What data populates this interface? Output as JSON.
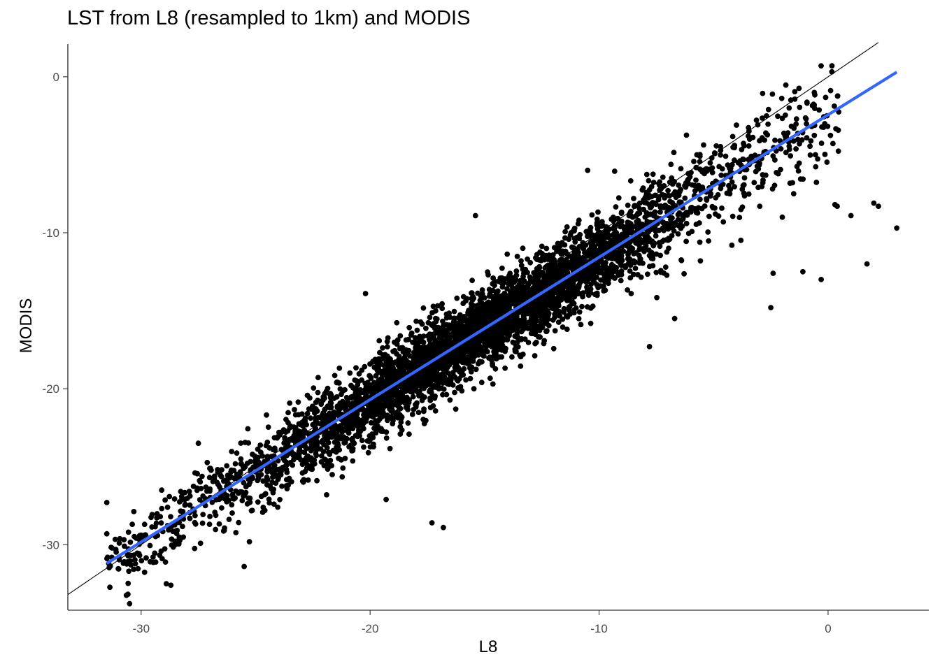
{
  "chart_data": {
    "type": "scatter",
    "title": "LST from L8 (resampled to 1km) and MODIS",
    "xlabel": "L8",
    "ylabel": "MODIS",
    "xlim": [
      -33.2,
      4.4
    ],
    "ylim": [
      -34.2,
      2.1
    ],
    "x_ticks": [
      -30,
      -20,
      -10,
      0
    ],
    "x_tick_labels": [
      "-30",
      "-20",
      "-10",
      "0"
    ],
    "y_ticks": [
      0,
      -10,
      -20,
      -30
    ],
    "y_tick_labels": [
      "0",
      "-10",
      "-20",
      "-30"
    ],
    "grid": false,
    "point_color": "#000000",
    "identity_line": {
      "x": [
        -33.2,
        2.2
      ],
      "y": [
        -33.2,
        2.2
      ],
      "color": "#000000"
    },
    "fit_line": {
      "x": [
        -31.5,
        3.0
      ],
      "y": [
        -31.2,
        0.3
      ],
      "color": "#3366FF"
    },
    "points_generated": {
      "count": 4500,
      "x_range": [
        -31.5,
        3.0
      ],
      "relation": "y ≈ 0.913x - 2.45",
      "noise_sd": 1.25
    },
    "outliers": [
      {
        "x": -31.5,
        "y": -27.3
      },
      {
        "x": -31.5,
        "y": -29.3
      },
      {
        "x": -29.1,
        "y": -26.5
      },
      {
        "x": -28.7,
        "y": -32.6
      },
      {
        "x": -28.9,
        "y": -32.5
      },
      {
        "x": -27.5,
        "y": -23.5
      },
      {
        "x": -20.2,
        "y": -13.9
      },
      {
        "x": -17.3,
        "y": -28.6
      },
      {
        "x": -16.8,
        "y": -28.9
      },
      {
        "x": -15.4,
        "y": -8.9
      },
      {
        "x": -7.8,
        "y": -17.3
      },
      {
        "x": -6.7,
        "y": -15.5
      },
      {
        "x": -2.5,
        "y": -14.8
      },
      {
        "x": -2.4,
        "y": -12.6
      },
      {
        "x": -1.1,
        "y": -12.5
      },
      {
        "x": -0.3,
        "y": -13.0
      },
      {
        "x": 0.3,
        "y": -8.2
      },
      {
        "x": 0.4,
        "y": -8.3
      },
      {
        "x": 1.0,
        "y": -8.9
      },
      {
        "x": 1.7,
        "y": -12.0
      },
      {
        "x": 2.0,
        "y": -8.1
      },
      {
        "x": 2.2,
        "y": -8.3
      },
      {
        "x": 3.0,
        "y": -9.7
      },
      {
        "x": -2.0,
        "y": -9.0
      },
      {
        "x": -1.5,
        "y": -7.5
      },
      {
        "x": -4.2,
        "y": -10.8
      },
      {
        "x": -2.6,
        "y": -2.1
      },
      {
        "x": -1.7,
        "y": -2.0
      },
      {
        "x": -4.0,
        "y": -3.1
      },
      {
        "x": -10.5,
        "y": -6.0
      },
      {
        "x": -13.3,
        "y": -15.0
      },
      {
        "x": -8.6,
        "y": -13.9
      },
      {
        "x": -21.9,
        "y": -26.8
      },
      {
        "x": -19.3,
        "y": -27.1
      },
      {
        "x": -24.2,
        "y": -27.4
      },
      {
        "x": -28.2,
        "y": -28.3
      },
      {
        "x": -25.5,
        "y": -31.4
      }
    ]
  }
}
